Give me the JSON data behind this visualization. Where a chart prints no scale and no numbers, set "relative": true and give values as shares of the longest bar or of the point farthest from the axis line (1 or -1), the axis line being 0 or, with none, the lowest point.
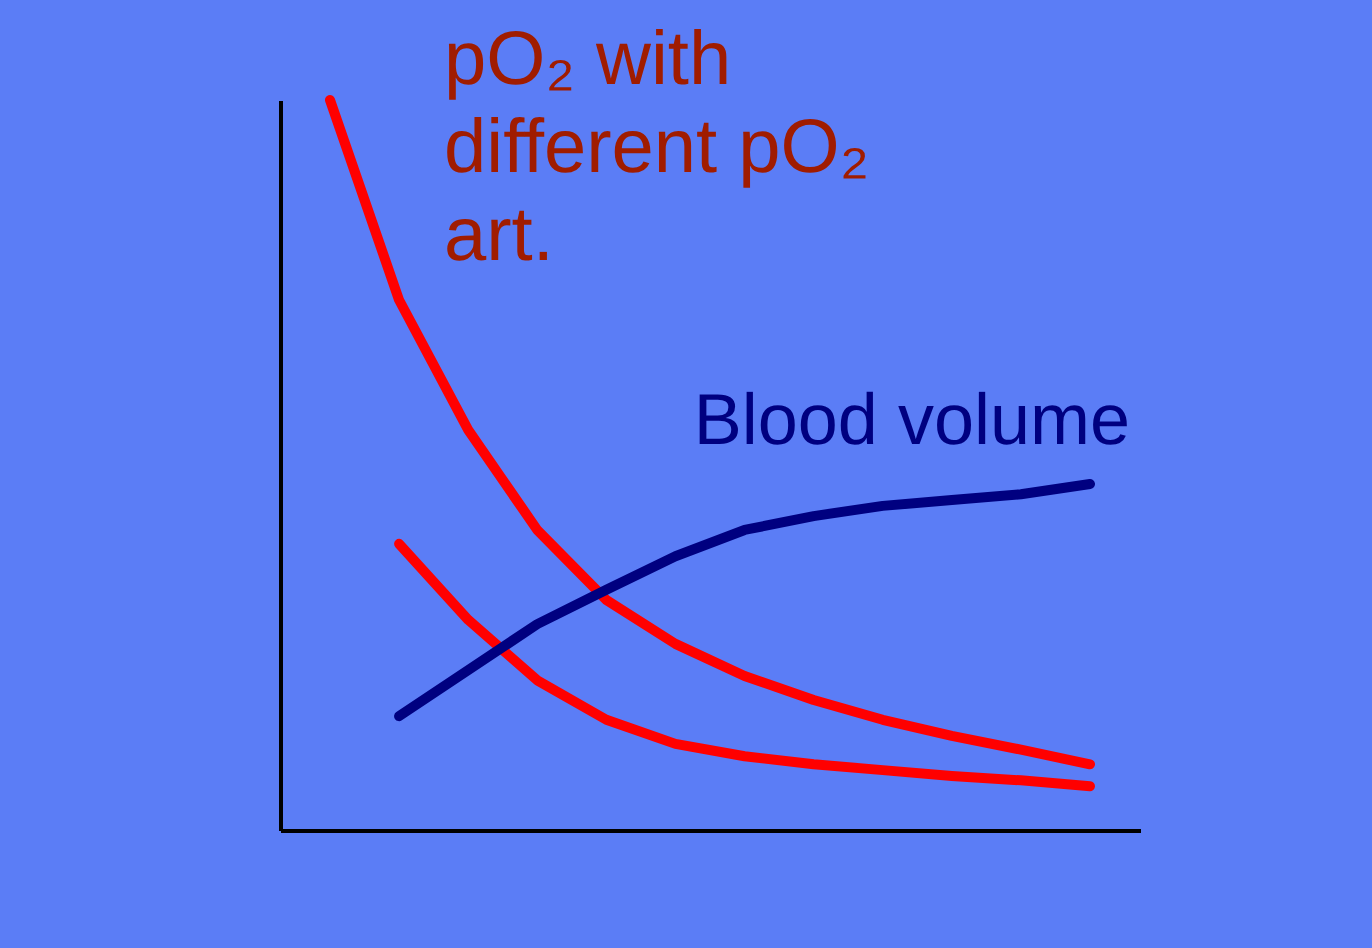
{
  "chart_data": {
    "type": "line",
    "relative": true,
    "categories": [
      null,
      null,
      null,
      null,
      null,
      null,
      null,
      null,
      null,
      null,
      null,
      null
    ],
    "series": [
      {
        "color": "#ff0000",
        "values": [
          1,
          0.726,
          0.548,
          0.411,
          0.315,
          0.255,
          0.211,
          0.178,
          0.151,
          0.129,
          0.11,
          0.09
        ]
      },
      {
        "color": "#ff0000",
        "values": [
          null,
          0.392,
          0.288,
          0.205,
          0.151,
          0.118,
          0.101,
          0.09,
          0.082,
          0.074,
          0.068,
          0.06
        ]
      },
      {
        "name": "Blood volume",
        "color": "#000080",
        "values": [
          null,
          0.156,
          0.219,
          0.282,
          0.329,
          0.375,
          0.411,
          0.43,
          0.444,
          0.452,
          0.46,
          0.474
        ]
      }
    ],
    "annotations": [
      "pO₂ with different pO₂ art."
    ],
    "grid": false,
    "tick_labels": false
  }
}
